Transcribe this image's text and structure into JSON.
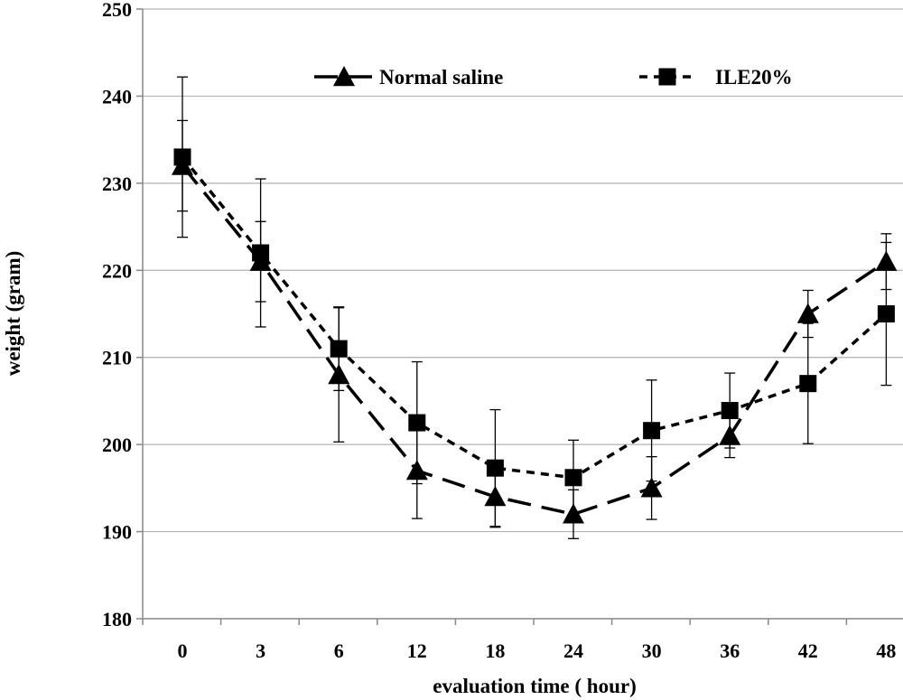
{
  "chart_data": {
    "type": "line",
    "xlabel": "evaluation time ( hour)",
    "ylabel": "weight (gram)",
    "categories": [
      "0",
      "3",
      "6",
      "12",
      "18",
      "24",
      "30",
      "36",
      "42",
      "48"
    ],
    "ylim": [
      180,
      250
    ],
    "yticks": [
      180,
      190,
      200,
      210,
      220,
      230,
      240,
      250
    ],
    "grid": true,
    "legend_position": "top",
    "series": [
      {
        "name": "Normal saline",
        "marker": "triangle",
        "line_style": "long-dash",
        "color": "#000000",
        "values": [
          232,
          221,
          208,
          197,
          194,
          192,
          195,
          201,
          215,
          221
        ],
        "error": [
          5.2,
          4.6,
          7.7,
          5.5,
          3.5,
          2.8,
          3.6,
          2.5,
          2.7,
          3.2
        ]
      },
      {
        "name": "ILE20%",
        "marker": "square",
        "line_style": "short-dash",
        "color": "#000000",
        "values": [
          233,
          222,
          211,
          202.5,
          197.3,
          196.2,
          201.6,
          203.9,
          207,
          215
        ],
        "error": [
          9.2,
          8.5,
          4.8,
          7.0,
          6.7,
          4.3,
          5.8,
          4.3,
          6.9,
          8.2
        ]
      }
    ]
  }
}
